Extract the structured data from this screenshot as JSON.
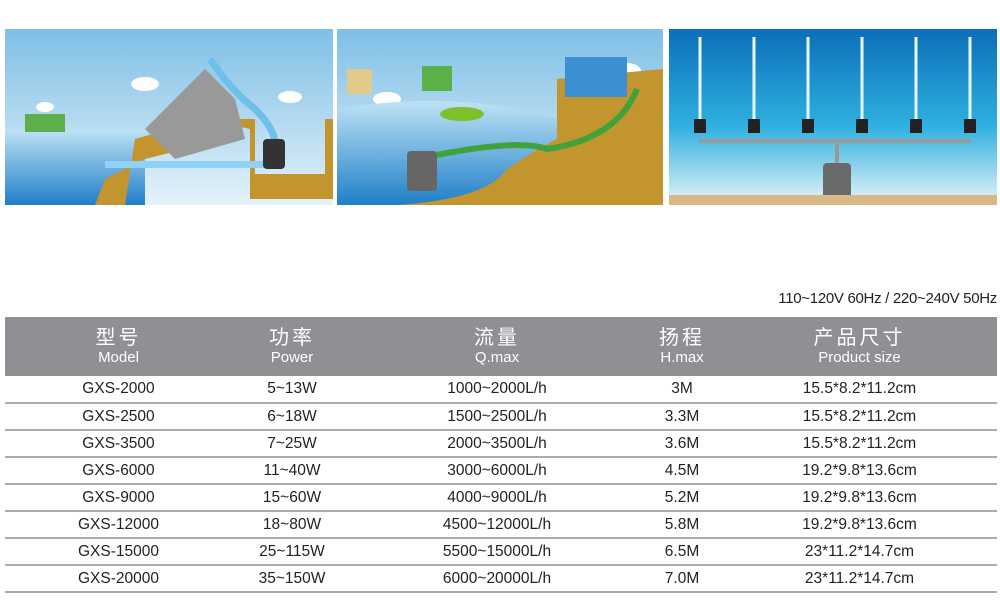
{
  "illustrations": [
    {
      "name": "rockery-waterfall-scene",
      "icon": "waterfall-illustration"
    },
    {
      "name": "pond-filter-scene",
      "icon": "pond-filter-illustration"
    },
    {
      "name": "fountain-scene",
      "icon": "fountain-illustration"
    }
  ],
  "voltage": "110~120V 60Hz / 220~240V 50Hz",
  "table": {
    "headers": [
      {
        "cn": "型号",
        "en": "Model"
      },
      {
        "cn": "功率",
        "en": "Power"
      },
      {
        "cn": "流量",
        "en": "Q.max"
      },
      {
        "cn": "扬程",
        "en": "H.max"
      },
      {
        "cn": "产品尺寸",
        "en": "Product size"
      }
    ],
    "rows": [
      [
        "GXS-2000",
        "5~13W",
        "1000~2000L/h",
        "3M",
        "15.5*8.2*11.2cm"
      ],
      [
        "GXS-2500",
        "6~18W",
        "1500~2500L/h",
        "3.3M",
        "15.5*8.2*11.2cm"
      ],
      [
        "GXS-3500",
        "7~25W",
        "2000~3500L/h",
        "3.6M",
        "15.5*8.2*11.2cm"
      ],
      [
        "GXS-6000",
        "11~40W",
        "3000~6000L/h",
        "4.5M",
        "19.2*9.8*13.6cm"
      ],
      [
        "GXS-9000",
        "15~60W",
        "4000~9000L/h",
        "5.2M",
        "19.2*9.8*13.6cm"
      ],
      [
        "GXS-12000",
        "18~80W",
        "4500~12000L/h",
        "5.8M",
        "19.2*9.8*13.6cm"
      ],
      [
        "GXS-15000",
        "25~115W",
        "5500~15000L/h",
        "6.5M",
        "23*11.2*14.7cm"
      ],
      [
        "GXS-20000",
        "35~150W",
        "6000~20000L/h",
        "7.0M",
        "23*11.2*14.7cm"
      ]
    ]
  },
  "colors": {
    "header_bg": "#8e9093",
    "soil": "#c3952f",
    "water": "#3a9bd8",
    "sky": "#bfe0f2"
  }
}
